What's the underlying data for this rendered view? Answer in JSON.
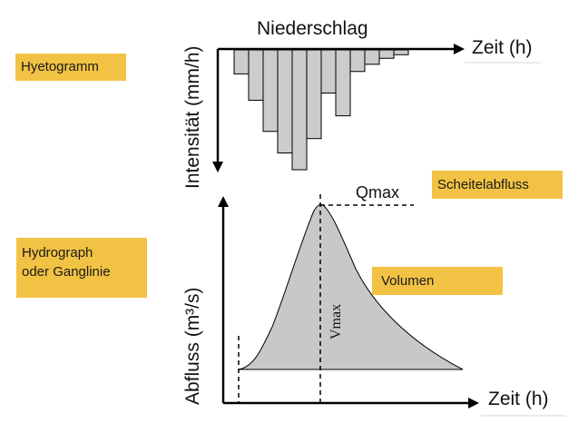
{
  "hyetograph": {
    "title": "Niederschlag",
    "xlabel": "Zeit (h)",
    "ylabel": "Intensität (mm/h)",
    "bars": [
      0.2,
      0.42,
      0.68,
      0.86,
      1.0,
      0.74,
      0.36,
      0.55,
      0.18,
      0.12,
      0.07,
      0.04
    ],
    "bar_color": "#cccccc"
  },
  "hydrograph": {
    "xlabel": "Zeit (h)",
    "ylabel": "Abfluss (m³/s)",
    "peak_label": "Qmax",
    "volume_axis_label": "Vmax",
    "fill_color": "#c8c8c8"
  },
  "labels": {
    "hyetogramm": "Hyetogramm",
    "hydrograph_line1": "Hydrograph",
    "hydrograph_line2": "oder Ganglinie",
    "scheitelabfluss": "Scheitelabfluss",
    "volumen": "Volumen"
  },
  "colors": {
    "label_box": "#f2c244",
    "axis": "#000000"
  }
}
